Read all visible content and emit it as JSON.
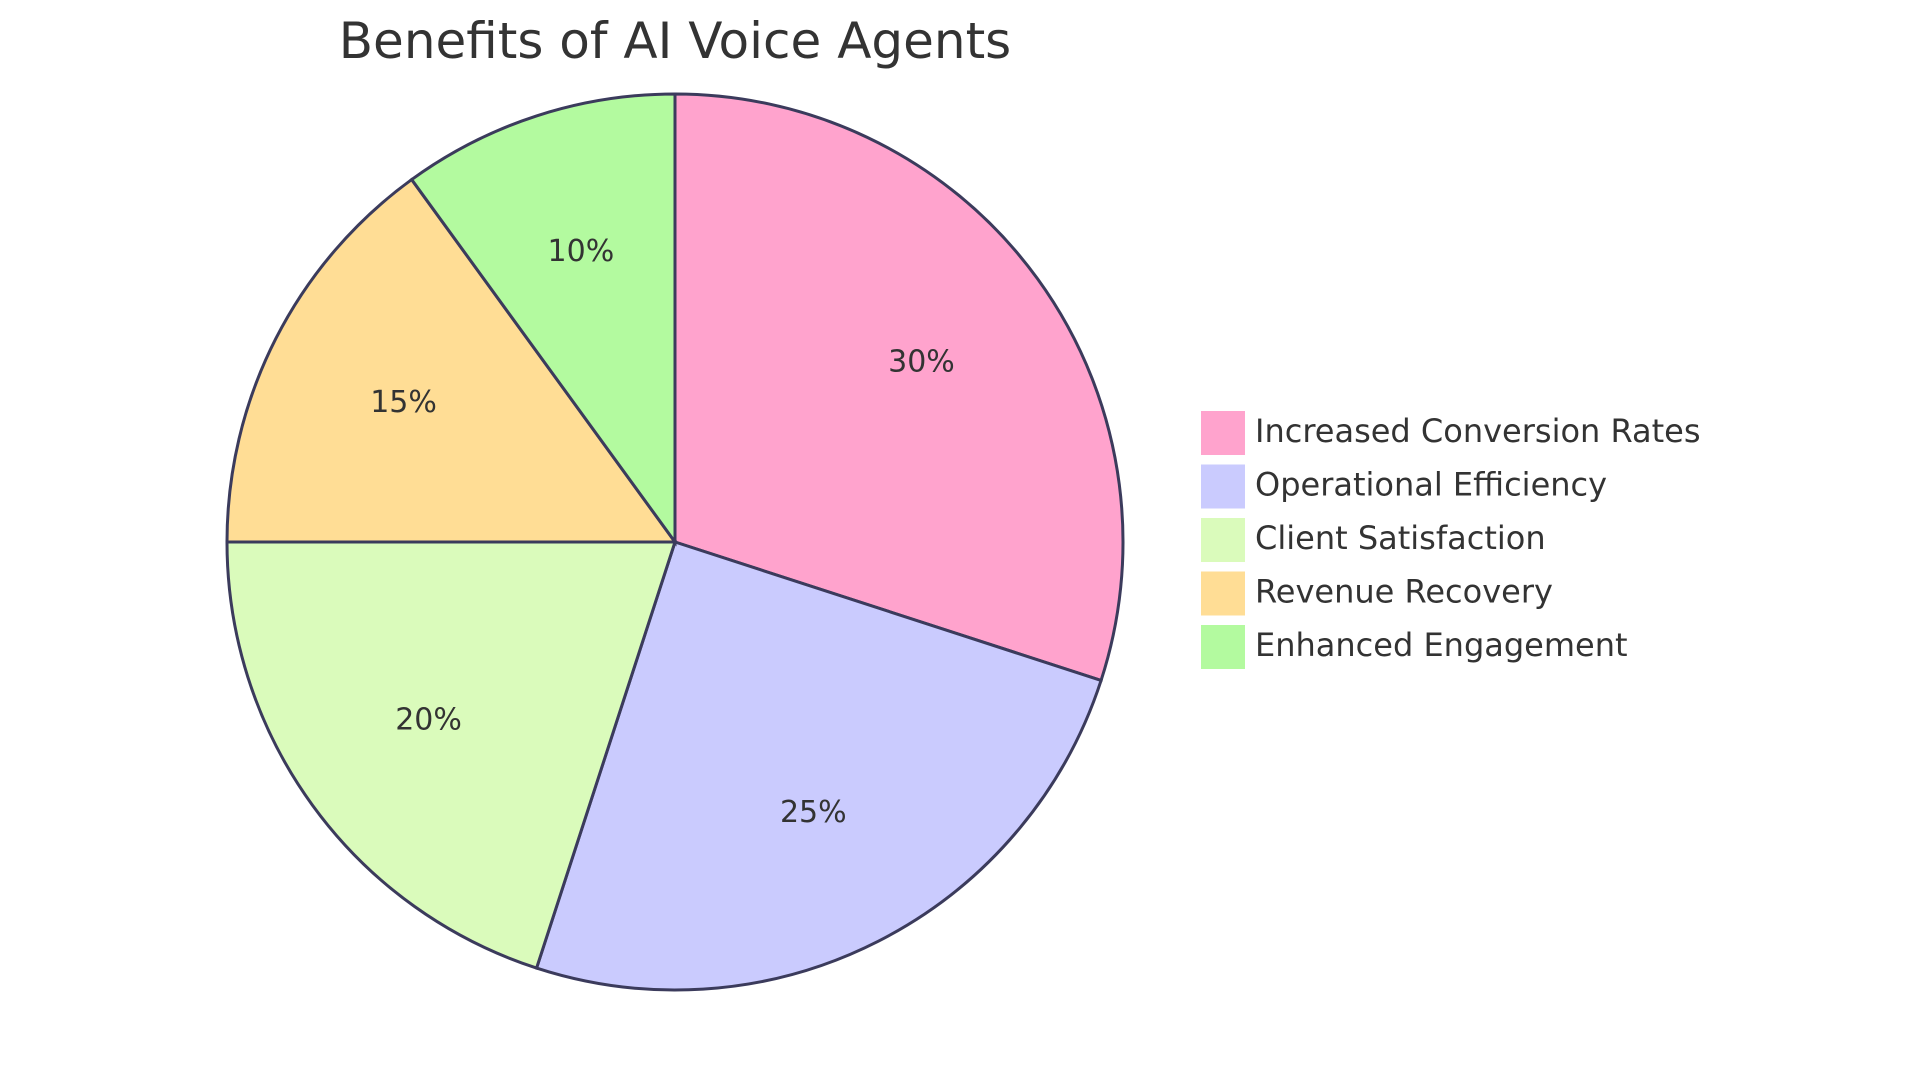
{
  "chart_data": {
    "type": "pie",
    "title": "Benefits of AI Voice Agents",
    "categories": [
      "Increased Conversion Rates",
      "Operational Efficiency",
      "Client Satisfaction",
      "Revenue Recovery",
      "Enhanced Engagement"
    ],
    "values": [
      30,
      25,
      20,
      15,
      10
    ],
    "labels": [
      "30%",
      "25%",
      "20%",
      "15%",
      "10%"
    ],
    "colors": [
      "#ffa3cd",
      "#cacbfe",
      "#dafbbb",
      "#ffdd95",
      "#b3fa9f"
    ],
    "legend_position": "right"
  }
}
